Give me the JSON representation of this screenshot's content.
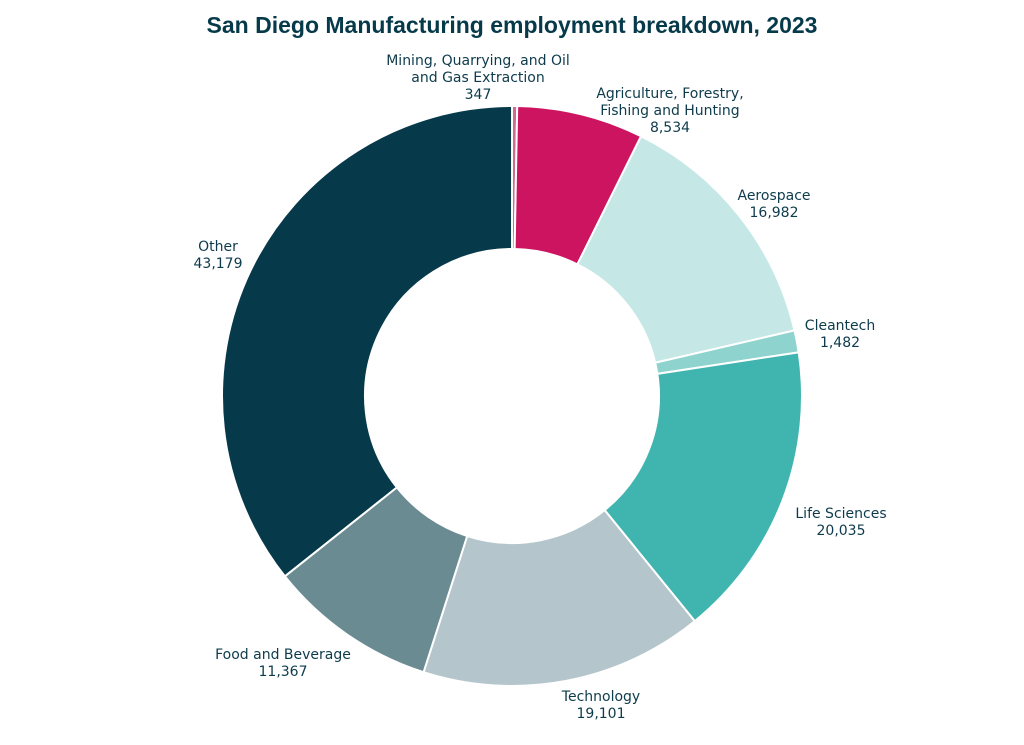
{
  "chart_data": {
    "type": "pie",
    "donut": true,
    "title": "San Diego Manufacturing employment breakdown, 2023",
    "slices": [
      {
        "name": [
          "Mining, Quarrying, and Oil",
          "and Gas Extraction"
        ],
        "label": "347",
        "value": 347,
        "color": "#d4698e"
      },
      {
        "name": [
          "Agriculture, Forestry,",
          "Fishing and Hunting"
        ],
        "label": "8,534",
        "value": 8534,
        "color": "#cc1460"
      },
      {
        "name": [
          "Aerospace"
        ],
        "label": "16,982",
        "value": 16982,
        "color": "#c5e8e6"
      },
      {
        "name": [
          "Cleantech"
        ],
        "label": "1,482",
        "value": 1482,
        "color": "#8fd3cf"
      },
      {
        "name": [
          "Life Sciences"
        ],
        "label": "20,035",
        "value": 20035,
        "color": "#40b5b0"
      },
      {
        "name": [
          "Technology"
        ],
        "label": "19,101",
        "value": 19101,
        "color": "#b4c5cb"
      },
      {
        "name": [
          "Food and Beverage"
        ],
        "label": "11,367",
        "value": 11367,
        "color": "#6a8b91"
      },
      {
        "name": [
          "Other"
        ],
        "label": "43,179",
        "value": 43179,
        "color": "#063a4a"
      }
    ],
    "start": "top",
    "direction": "clockwise",
    "legend": "none (labels beside slices)"
  }
}
